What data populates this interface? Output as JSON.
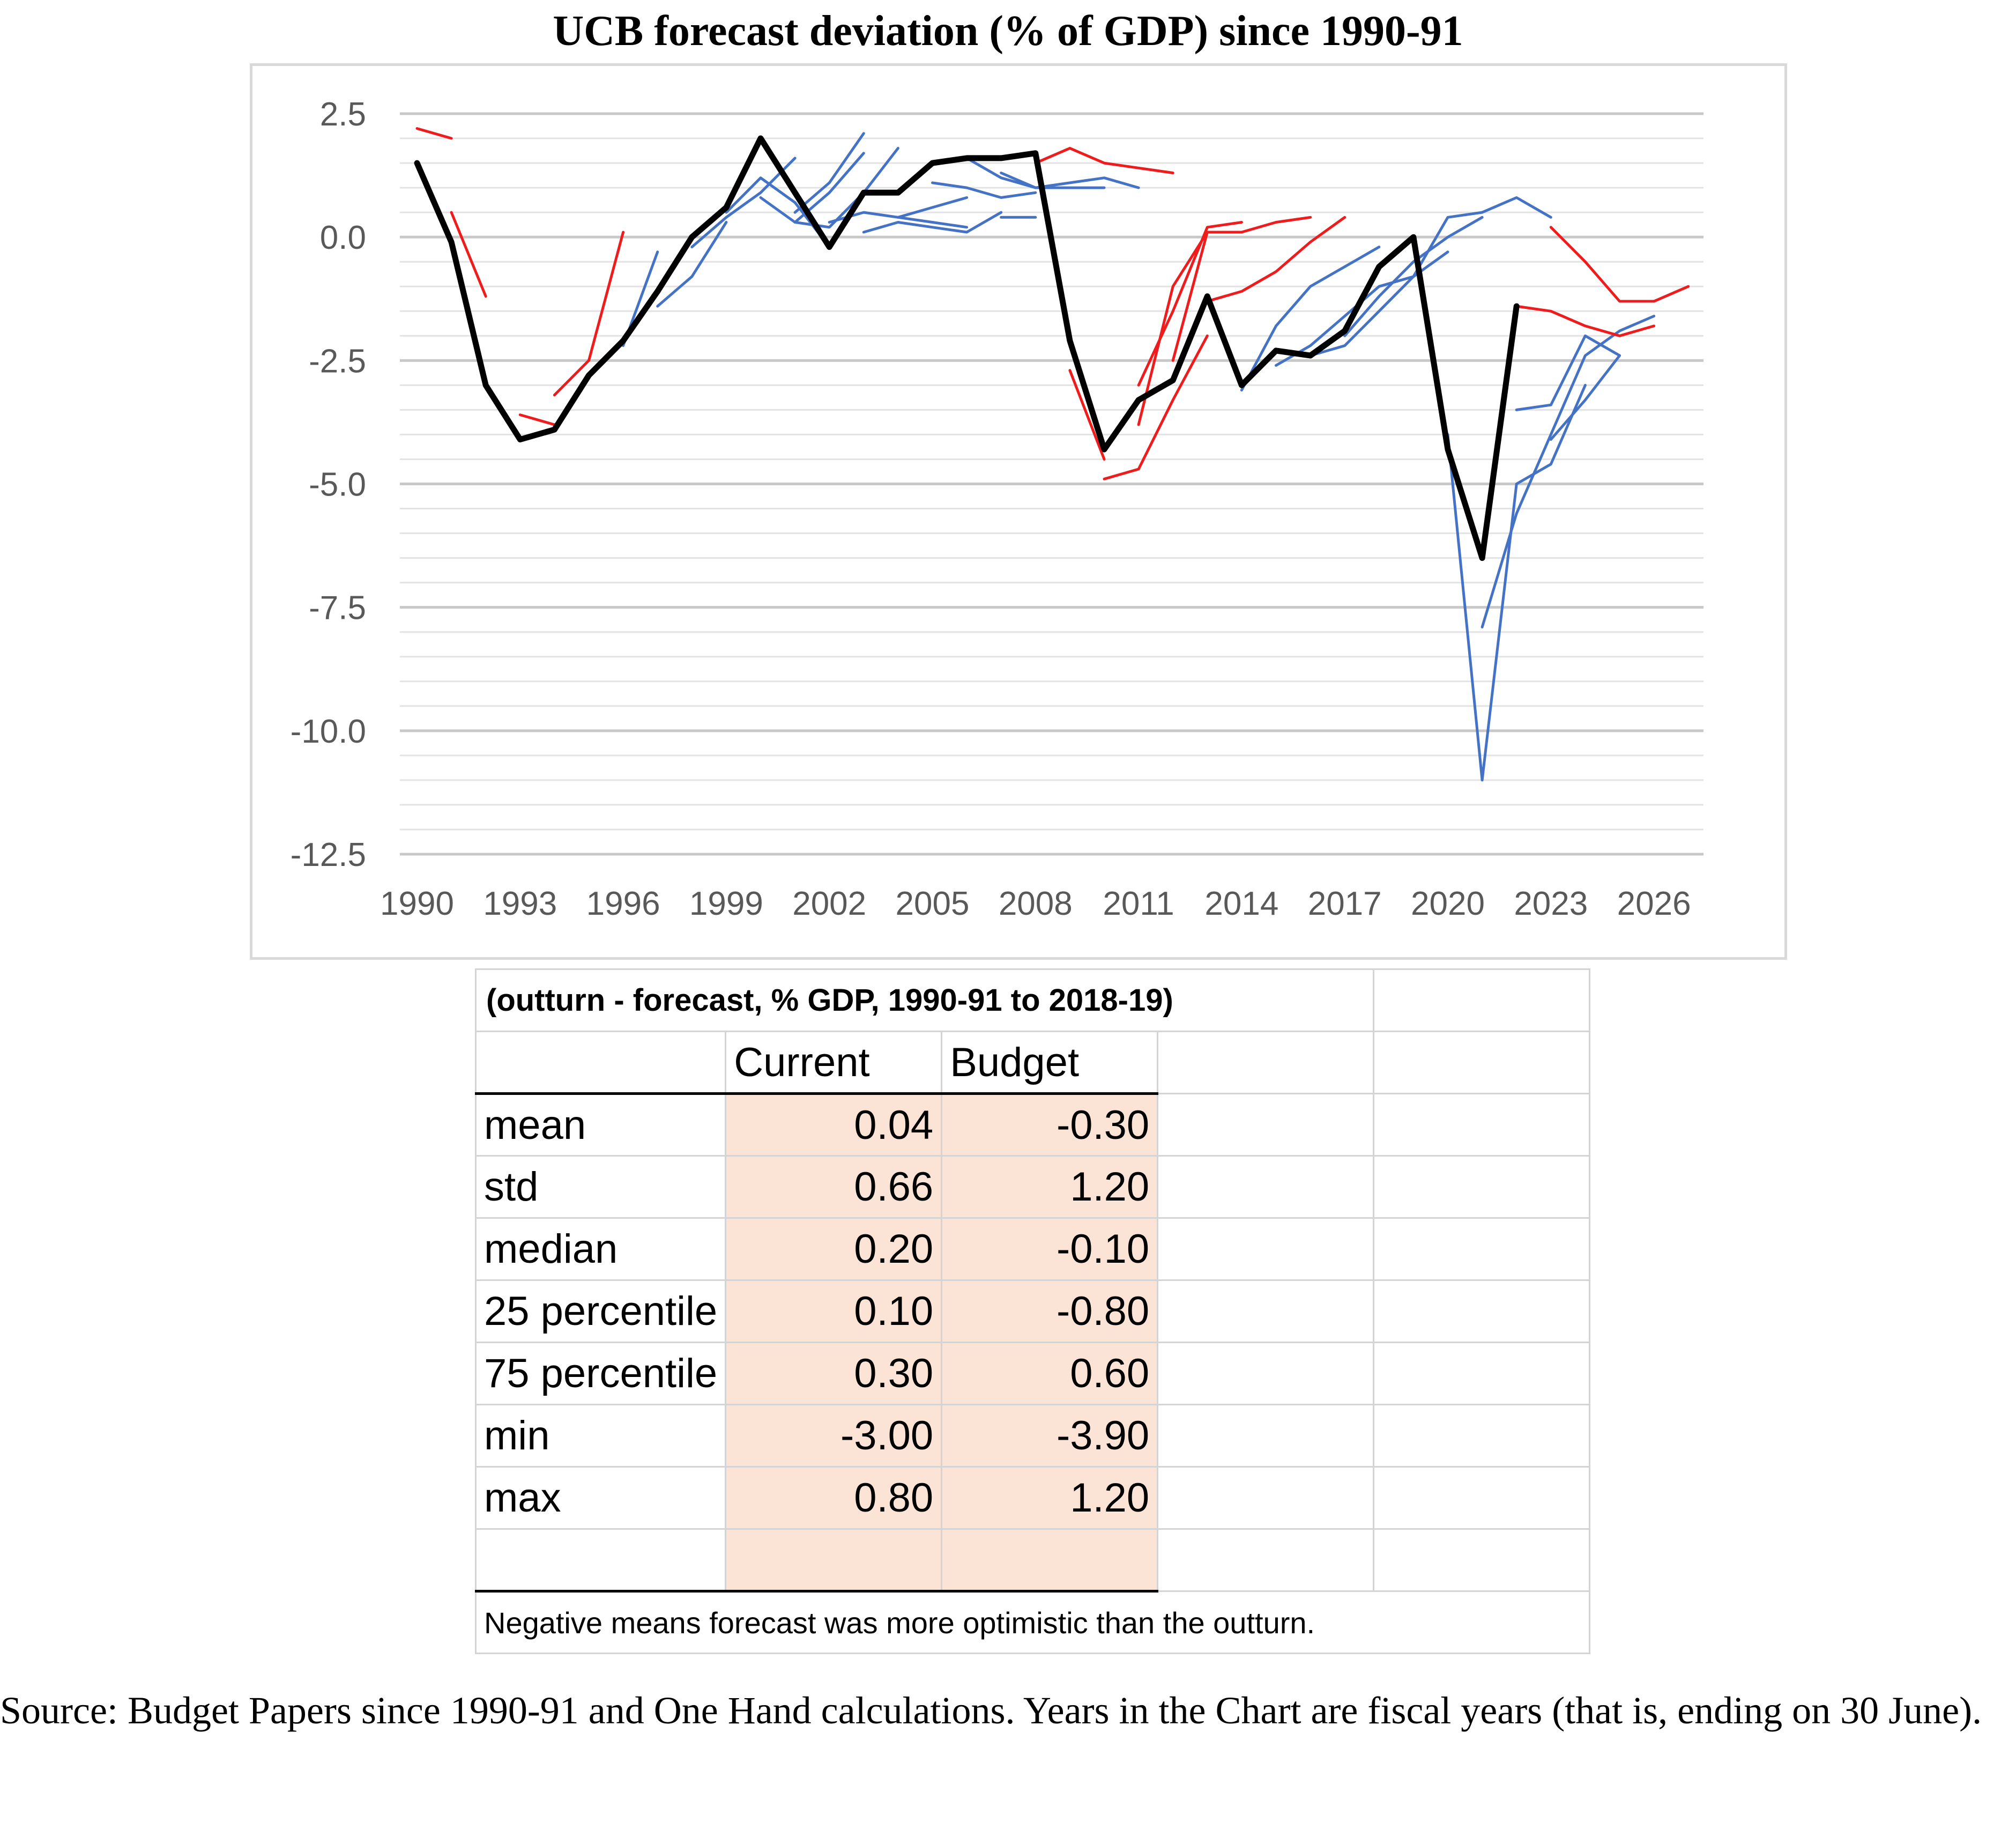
{
  "title": "UCB forecast deviation (% of GDP) since 1990-91",
  "chart_data": {
    "type": "line",
    "title": "UCB forecast deviation (% of GDP) since 1990-91",
    "xlabel": "",
    "ylabel": "",
    "xlim": [
      1990,
      2027
    ],
    "ylim": [
      -12.5,
      2.5
    ],
    "x_ticks": [
      1990,
      1993,
      1996,
      1999,
      2002,
      2005,
      2008,
      2011,
      2014,
      2017,
      2020,
      2023,
      2026
    ],
    "y_ticks": [
      -12.5,
      -10.0,
      -7.5,
      -5.0,
      -2.5,
      0.0,
      2.5
    ],
    "y_tick_labels": [
      "-12.5",
      "-10.0",
      "-7.5",
      "-5.0",
      "-2.5",
      "0.0",
      "2.5"
    ],
    "grid": true,
    "legend": "none",
    "colors": {
      "outturn": "#000000",
      "red_forecasts": "#ee1c1c",
      "blue_forecasts": "#4472c4"
    },
    "series": [
      {
        "color": "black",
        "points": [
          [
            1990,
            1.5
          ],
          [
            1991,
            -0.1
          ],
          [
            1992,
            -3.0
          ],
          [
            1993,
            -4.1
          ],
          [
            1994,
            -3.9
          ],
          [
            1995,
            -2.8
          ],
          [
            1996,
            -2.1
          ],
          [
            1997,
            -1.1
          ],
          [
            1998,
            0.0
          ],
          [
            1999,
            0.6
          ],
          [
            2000,
            2.0
          ],
          [
            2001,
            0.9
          ],
          [
            2002,
            -0.2
          ],
          [
            2003,
            0.9
          ],
          [
            2004,
            0.9
          ],
          [
            2005,
            1.5
          ],
          [
            2006,
            1.6
          ],
          [
            2007,
            1.6
          ],
          [
            2008,
            1.7
          ],
          [
            2009,
            -2.1
          ],
          [
            2010,
            -4.3
          ],
          [
            2011,
            -3.3
          ],
          [
            2012,
            -2.9
          ],
          [
            2013,
            -1.2
          ],
          [
            2014,
            -3.0
          ],
          [
            2015,
            -2.3
          ],
          [
            2016,
            -2.4
          ],
          [
            2017,
            -1.9
          ],
          [
            2018,
            -0.6
          ],
          [
            2019,
            0.0
          ],
          [
            2020,
            -4.3
          ],
          [
            2021,
            -6.5
          ],
          [
            2022,
            -1.4
          ]
        ]
      },
      {
        "color": "red",
        "points": [
          [
            1990,
            2.2
          ],
          [
            1991,
            2.0
          ]
        ]
      },
      {
        "color": "red",
        "points": [
          [
            1991,
            0.5
          ],
          [
            1992,
            -1.2
          ]
        ]
      },
      {
        "color": "red",
        "points": [
          [
            1993,
            -3.6
          ],
          [
            1994,
            -3.8
          ]
        ]
      },
      {
        "color": "red",
        "points": [
          [
            1994,
            -3.2
          ],
          [
            1995,
            -2.5
          ]
        ]
      },
      {
        "color": "red",
        "points": [
          [
            1995,
            -2.5
          ],
          [
            1996,
            0.1
          ]
        ]
      },
      {
        "color": "red",
        "points": [
          [
            2008,
            1.5
          ],
          [
            2009,
            1.8
          ],
          [
            2010,
            1.5
          ],
          [
            2011,
            1.4
          ],
          [
            2012,
            1.3
          ]
        ]
      },
      {
        "color": "red",
        "points": [
          [
            2009,
            -2.7
          ],
          [
            2010,
            -4.5
          ]
        ]
      },
      {
        "color": "red",
        "points": [
          [
            2010,
            -4.9
          ],
          [
            2011,
            -4.7
          ],
          [
            2012,
            -3.3
          ],
          [
            2013,
            -2.0
          ]
        ]
      },
      {
        "color": "red",
        "points": [
          [
            2011,
            -3.8
          ],
          [
            2012,
            -1.0
          ],
          [
            2013,
            0.1
          ]
        ]
      },
      {
        "color": "red",
        "points": [
          [
            2011,
            -3.0
          ],
          [
            2012,
            -1.5
          ],
          [
            2013,
            0.2
          ],
          [
            2014,
            0.3
          ]
        ]
      },
      {
        "color": "red",
        "points": [
          [
            2012,
            -2.5
          ],
          [
            2013,
            0.1
          ],
          [
            2014,
            0.1
          ],
          [
            2015,
            0.3
          ],
          [
            2016,
            0.4
          ]
        ]
      },
      {
        "color": "red",
        "points": [
          [
            2013,
            -1.3
          ],
          [
            2014,
            -1.1
          ],
          [
            2015,
            -0.7
          ],
          [
            2016,
            -0.1
          ],
          [
            2017,
            0.4
          ]
        ]
      },
      {
        "color": "red",
        "points": [
          [
            2022,
            -1.4
          ],
          [
            2023,
            -1.5
          ],
          [
            2024,
            -1.8
          ],
          [
            2025,
            -2.0
          ],
          [
            2026,
            -1.8
          ]
        ]
      },
      {
        "color": "red",
        "points": [
          [
            2023,
            0.2
          ],
          [
            2024,
            -0.5
          ],
          [
            2025,
            -1.3
          ],
          [
            2026,
            -1.3
          ],
          [
            2027,
            -1.0
          ]
        ]
      },
      {
        "color": "blue",
        "points": [
          [
            1996,
            -2.2
          ],
          [
            1997,
            -0.3
          ]
        ]
      },
      {
        "color": "blue",
        "points": [
          [
            1997,
            -1.4
          ],
          [
            1998,
            -0.8
          ],
          [
            1999,
            0.3
          ]
        ]
      },
      {
        "color": "blue",
        "points": [
          [
            1998,
            -0.2
          ],
          [
            1999,
            0.4
          ],
          [
            2000,
            0.9
          ],
          [
            2001,
            1.6
          ]
        ]
      },
      {
        "color": "blue",
        "points": [
          [
            1999,
            0.5
          ],
          [
            2000,
            1.2
          ],
          [
            2001,
            0.7
          ],
          [
            2002,
            -0.2
          ]
        ]
      },
      {
        "color": "blue",
        "points": [
          [
            2000,
            0.8
          ],
          [
            2001,
            0.3
          ],
          [
            2002,
            0.9
          ],
          [
            2003,
            1.7
          ]
        ]
      },
      {
        "color": "blue",
        "points": [
          [
            2001,
            0.3
          ],
          [
            2002,
            0.2
          ],
          [
            2003,
            0.9
          ],
          [
            2004,
            1.8
          ]
        ]
      },
      {
        "color": "blue",
        "points": [
          [
            2001,
            0.5
          ],
          [
            2002,
            1.1
          ],
          [
            2003,
            2.1
          ]
        ]
      },
      {
        "color": "blue",
        "points": [
          [
            2002,
            0.3
          ],
          [
            2003,
            0.5
          ],
          [
            2004,
            0.4
          ],
          [
            2005,
            0.3
          ],
          [
            2006,
            0.2
          ]
        ]
      },
      {
        "color": "blue",
        "points": [
          [
            2003,
            0.1
          ],
          [
            2004,
            0.3
          ],
          [
            2005,
            0.2
          ],
          [
            2006,
            0.1
          ],
          [
            2007,
            0.5
          ]
        ]
      },
      {
        "color": "blue",
        "points": [
          [
            2004,
            0.4
          ],
          [
            2005,
            0.6
          ],
          [
            2006,
            0.8
          ]
        ]
      },
      {
        "color": "blue",
        "points": [
          [
            2005,
            1.1
          ],
          [
            2006,
            1.0
          ],
          [
            2007,
            0.8
          ],
          [
            2008,
            0.9
          ]
        ]
      },
      {
        "color": "blue",
        "points": [
          [
            2006,
            1.6
          ],
          [
            2007,
            1.2
          ],
          [
            2008,
            1.0
          ],
          [
            2009,
            1.0
          ],
          [
            2010,
            1.0
          ]
        ]
      },
      {
        "color": "blue",
        "points": [
          [
            2007,
            1.3
          ],
          [
            2008,
            1.0
          ],
          [
            2009,
            1.1
          ],
          [
            2010,
            1.2
          ],
          [
            2011,
            1.0
          ]
        ]
      },
      {
        "color": "blue",
        "points": [
          [
            2007,
            0.4
          ],
          [
            2008,
            0.4
          ]
        ]
      },
      {
        "color": "blue",
        "points": [
          [
            2014,
            -3.1
          ],
          [
            2015,
            -1.8
          ],
          [
            2016,
            -1.0
          ],
          [
            2017,
            -0.6
          ],
          [
            2018,
            -0.2
          ]
        ]
      },
      {
        "color": "blue",
        "points": [
          [
            2015,
            -2.6
          ],
          [
            2016,
            -2.2
          ],
          [
            2017,
            -1.6
          ],
          [
            2018,
            -1.0
          ],
          [
            2019,
            -0.8
          ]
        ]
      },
      {
        "color": "blue",
        "points": [
          [
            2016,
            -2.4
          ],
          [
            2017,
            -2.2
          ],
          [
            2018,
            -1.5
          ],
          [
            2019,
            -0.8
          ],
          [
            2020,
            -0.3
          ]
        ]
      },
      {
        "color": "blue",
        "points": [
          [
            2017,
            -2.0
          ],
          [
            2018,
            -1.2
          ],
          [
            2019,
            -0.5
          ],
          [
            2020,
            0.0
          ],
          [
            2021,
            0.4
          ]
        ]
      },
      {
        "color": "blue",
        "points": [
          [
            2019,
            -0.8
          ],
          [
            2020,
            0.4
          ],
          [
            2021,
            0.5
          ],
          [
            2022,
            0.8
          ],
          [
            2023,
            0.4
          ]
        ]
      },
      {
        "color": "blue",
        "points": [
          [
            2020,
            -4.0
          ],
          [
            2021,
            -11.0
          ],
          [
            2022,
            -5.0
          ],
          [
            2023,
            -4.6
          ],
          [
            2024,
            -3.0
          ]
        ]
      },
      {
        "color": "blue",
        "points": [
          [
            2021,
            -7.9
          ],
          [
            2022,
            -5.6
          ],
          [
            2023,
            -4.0
          ],
          [
            2024,
            -2.4
          ],
          [
            2025,
            -1.9
          ],
          [
            2026,
            -1.6
          ]
        ]
      },
      {
        "color": "blue",
        "points": [
          [
            2022,
            -3.5
          ],
          [
            2023,
            -3.4
          ],
          [
            2024,
            -2.0
          ],
          [
            2025,
            -2.4
          ]
        ]
      },
      {
        "color": "blue",
        "points": [
          [
            2023,
            -4.1
          ],
          [
            2024,
            -3.3
          ],
          [
            2025,
            -2.4
          ]
        ]
      }
    ]
  },
  "table": {
    "subtitle": "(outturn - forecast, % GDP, 1990-91 to 2018-19)",
    "col_current": "Current",
    "col_budget": "Budget",
    "rows": [
      {
        "label": "mean",
        "current": "0.04",
        "budget": "-0.30"
      },
      {
        "label": "std",
        "current": "0.66",
        "budget": "1.20"
      },
      {
        "label": "median",
        "current": "0.20",
        "budget": "-0.10"
      },
      {
        "label": "25 percentile",
        "current": "0.10",
        "budget": "-0.80"
      },
      {
        "label": "75 percentile",
        "current": "0.30",
        "budget": "0.60"
      },
      {
        "label": "min",
        "current": "-3.00",
        "budget": "-3.90"
      },
      {
        "label": "max",
        "current": "0.80",
        "budget": "1.20"
      }
    ],
    "note": "Negative means forecast was more optimistic than the outturn."
  },
  "source": "Source: Budget Papers since 1990-91 and One Hand calculations. Years in the Chart are fiscal years (that is, ending on 30 June)."
}
